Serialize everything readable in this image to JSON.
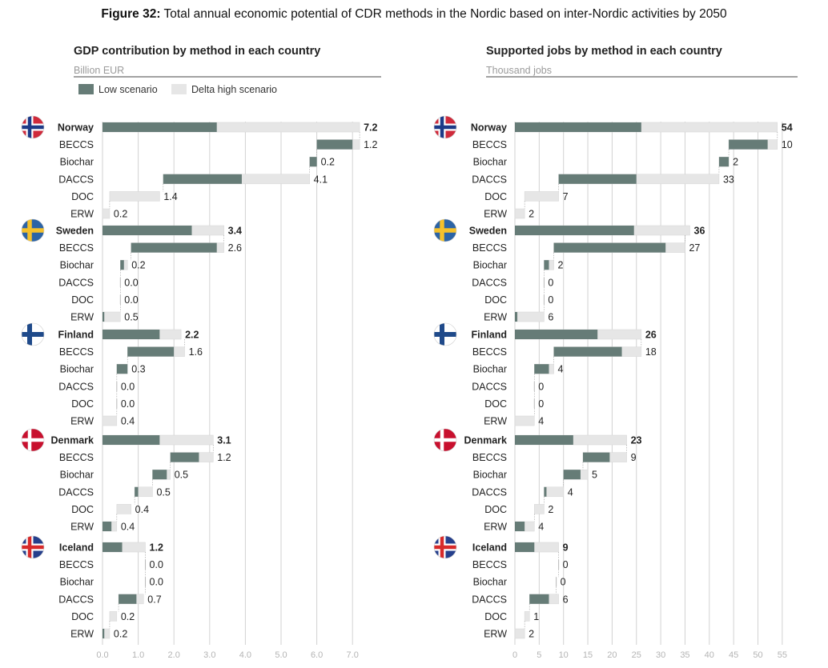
{
  "figure": {
    "label": "Figure 32:",
    "title": "Total annual economic potential of CDR methods in the Nordic based on inter-Nordic activities by 2050"
  },
  "colors": {
    "low": "#667c77",
    "delta": "#e6e6e6",
    "grid": "#d2d2d2",
    "flag_no": "#cf2a3b",
    "flag_se": "#2c64a6",
    "flag_fi": "#1f4a8a",
    "flag_dk": "#c8102e",
    "flag_is": "#253f8c"
  },
  "legend": {
    "low": "Low scenario",
    "delta": "Delta high scenario"
  },
  "chart_data": [
    {
      "type": "bar",
      "title": "GDP contribution by method in each country",
      "unit": "Billion EUR",
      "xlim": [
        0,
        7.5
      ],
      "ticks": [
        "0.0",
        "1.0",
        "2.0",
        "3.0",
        "4.0",
        "5.0",
        "6.0",
        "7.0"
      ],
      "tick_values": [
        0,
        1,
        2,
        3,
        4,
        5,
        6,
        7
      ],
      "orientation": "horizontal waterfall",
      "groups": [
        {
          "country": "Norway",
          "flag": "norway-flag-icon",
          "total": {
            "low": 3.2,
            "high": 7.2,
            "label": "7.2"
          },
          "methods": [
            {
              "name": "BECCS",
              "start": 6.0,
              "low": 1.0,
              "high": 1.2,
              "label": "1.2"
            },
            {
              "name": "Biochar",
              "start": 5.8,
              "low": 0.2,
              "high": 0.2,
              "label": "0.2"
            },
            {
              "name": "DACCS",
              "start": 1.7,
              "low": 2.2,
              "high": 4.1,
              "label": "4.1"
            },
            {
              "name": "DOC",
              "start": 0.2,
              "low": 0.0,
              "high": 1.4,
              "label": "1.4"
            },
            {
              "name": "ERW",
              "start": 0.0,
              "low": 0.0,
              "high": 0.2,
              "label": "0.2"
            }
          ]
        },
        {
          "country": "Sweden",
          "flag": "sweden-flag-icon",
          "total": {
            "low": 2.5,
            "high": 3.4,
            "label": "3.4"
          },
          "methods": [
            {
              "name": "BECCS",
              "start": 0.8,
              "low": 2.4,
              "high": 2.6,
              "label": "2.6"
            },
            {
              "name": "Biochar",
              "start": 0.5,
              "low": 0.1,
              "high": 0.2,
              "label": "0.2"
            },
            {
              "name": "DACCS",
              "start": 0.5,
              "low": 0.0,
              "high": 0.0,
              "label": "0.0"
            },
            {
              "name": "DOC",
              "start": 0.5,
              "low": 0.0,
              "high": 0.0,
              "label": "0.0"
            },
            {
              "name": "ERW",
              "start": 0.0,
              "low": 0.05,
              "high": 0.5,
              "label": "0.5"
            }
          ]
        },
        {
          "country": "Finland",
          "flag": "finland-flag-icon",
          "total": {
            "low": 1.6,
            "high": 2.2,
            "label": "2.2"
          },
          "methods": [
            {
              "name": "BECCS",
              "start": 0.7,
              "low": 1.3,
              "high": 1.6,
              "label": "1.6"
            },
            {
              "name": "Biochar",
              "start": 0.4,
              "low": 0.3,
              "high": 0.3,
              "label": "0.3"
            },
            {
              "name": "DACCS",
              "start": 0.4,
              "low": 0.0,
              "high": 0.0,
              "label": "0.0"
            },
            {
              "name": "DOC",
              "start": 0.4,
              "low": 0.0,
              "high": 0.0,
              "label": "0.0"
            },
            {
              "name": "ERW",
              "start": 0.0,
              "low": 0.0,
              "high": 0.4,
              "label": "0.4"
            }
          ]
        },
        {
          "country": "Denmark",
          "flag": "denmark-flag-icon",
          "total": {
            "low": 1.6,
            "high": 3.1,
            "label": "3.1"
          },
          "methods": [
            {
              "name": "BECCS",
              "start": 1.9,
              "low": 0.8,
              "high": 1.2,
              "label": "1.2"
            },
            {
              "name": "Biochar",
              "start": 1.4,
              "low": 0.4,
              "high": 0.5,
              "label": "0.5"
            },
            {
              "name": "DACCS",
              "start": 0.9,
              "low": 0.1,
              "high": 0.5,
              "label": "0.5"
            },
            {
              "name": "DOC",
              "start": 0.4,
              "low": 0.0,
              "high": 0.4,
              "label": "0.4"
            },
            {
              "name": "ERW",
              "start": 0.0,
              "low": 0.25,
              "high": 0.4,
              "label": "0.4"
            }
          ]
        },
        {
          "country": "Iceland",
          "flag": "iceland-flag-icon",
          "total": {
            "low": 0.55,
            "high": 1.2,
            "label": "1.2"
          },
          "methods": [
            {
              "name": "BECCS",
              "start": 1.2,
              "low": 0.0,
              "high": 0.0,
              "label": "0.0"
            },
            {
              "name": "Biochar",
              "start": 1.2,
              "low": 0.0,
              "high": 0.0,
              "label": "0.0"
            },
            {
              "name": "DACCS",
              "start": 0.45,
              "low": 0.5,
              "high": 0.7,
              "label": "0.7"
            },
            {
              "name": "DOC",
              "start": 0.2,
              "low": 0.0,
              "high": 0.2,
              "label": "0.2"
            },
            {
              "name": "ERW",
              "start": 0.0,
              "low": 0.05,
              "high": 0.2,
              "label": "0.2"
            }
          ]
        }
      ]
    },
    {
      "type": "bar",
      "title": "Supported jobs by method in each country",
      "unit": "Thousand jobs",
      "xlim": [
        0,
        55
      ],
      "ticks": [
        "0",
        "5",
        "10",
        "15",
        "20",
        "25",
        "30",
        "35",
        "40",
        "45",
        "50",
        "55"
      ],
      "tick_values": [
        0,
        5,
        10,
        15,
        20,
        25,
        30,
        35,
        40,
        45,
        50,
        55
      ],
      "orientation": "horizontal waterfall",
      "groups": [
        {
          "country": "Norway",
          "flag": "norway-flag-icon",
          "total": {
            "low": 26,
            "high": 54,
            "label": "54"
          },
          "methods": [
            {
              "name": "BECCS",
              "start": 44,
              "low": 8,
              "high": 10,
              "label": "10"
            },
            {
              "name": "Biochar",
              "start": 42,
              "low": 2,
              "high": 2,
              "label": "2"
            },
            {
              "name": "DACCS",
              "start": 9,
              "low": 16,
              "high": 33,
              "label": "33"
            },
            {
              "name": "DOC",
              "start": 2,
              "low": 0,
              "high": 7,
              "label": "7"
            },
            {
              "name": "ERW",
              "start": 0,
              "low": 0,
              "high": 2,
              "label": "2"
            }
          ]
        },
        {
          "country": "Sweden",
          "flag": "sweden-flag-icon",
          "total": {
            "low": 24.5,
            "high": 36,
            "label": "36"
          },
          "methods": [
            {
              "name": "BECCS",
              "start": 8,
              "low": 23,
              "high": 27,
              "label": "27"
            },
            {
              "name": "Biochar",
              "start": 6,
              "low": 1,
              "high": 2,
              "label": "2"
            },
            {
              "name": "DACCS",
              "start": 6,
              "low": 0,
              "high": 0,
              "label": "0"
            },
            {
              "name": "DOC",
              "start": 6,
              "low": 0,
              "high": 0,
              "label": "0"
            },
            {
              "name": "ERW",
              "start": 0,
              "low": 0.5,
              "high": 6,
              "label": "6"
            }
          ]
        },
        {
          "country": "Finland",
          "flag": "finland-flag-icon",
          "total": {
            "low": 17,
            "high": 26,
            "label": "26"
          },
          "methods": [
            {
              "name": "BECCS",
              "start": 8,
              "low": 14,
              "high": 18,
              "label": "18"
            },
            {
              "name": "Biochar",
              "start": 4,
              "low": 3,
              "high": 4,
              "label": "4"
            },
            {
              "name": "DACCS",
              "start": 4,
              "low": 0,
              "high": 0,
              "label": "0"
            },
            {
              "name": "DOC",
              "start": 4,
              "low": 0,
              "high": 0,
              "label": "0"
            },
            {
              "name": "ERW",
              "start": 0,
              "low": 0,
              "high": 4,
              "label": "4"
            }
          ]
        },
        {
          "country": "Denmark",
          "flag": "denmark-flag-icon",
          "total": {
            "low": 12,
            "high": 23,
            "label": "23"
          },
          "methods": [
            {
              "name": "BECCS",
              "start": 14,
              "low": 5.5,
              "high": 9,
              "label": "9"
            },
            {
              "name": "Biochar",
              "start": 10,
              "low": 3.5,
              "high": 5,
              "label": "5"
            },
            {
              "name": "DACCS",
              "start": 6,
              "low": 0.5,
              "high": 4,
              "label": "4"
            },
            {
              "name": "DOC",
              "start": 4,
              "low": 0,
              "high": 2,
              "label": "2"
            },
            {
              "name": "ERW",
              "start": 0,
              "low": 2,
              "high": 4,
              "label": "4"
            }
          ]
        },
        {
          "country": "Iceland",
          "flag": "iceland-flag-icon",
          "total": {
            "low": 4,
            "high": 9,
            "label": "9"
          },
          "methods": [
            {
              "name": "BECCS",
              "start": 9,
              "low": 0,
              "high": 0,
              "label": "0"
            },
            {
              "name": "Biochar",
              "start": 8.5,
              "low": 0,
              "high": 0,
              "label": "0"
            },
            {
              "name": "DACCS",
              "start": 3,
              "low": 4,
              "high": 6,
              "label": "6"
            },
            {
              "name": "DOC",
              "start": 2,
              "low": 0,
              "high": 1,
              "label": "1"
            },
            {
              "name": "ERW",
              "start": 0,
              "low": 0,
              "high": 2,
              "label": "2"
            }
          ]
        }
      ]
    }
  ]
}
